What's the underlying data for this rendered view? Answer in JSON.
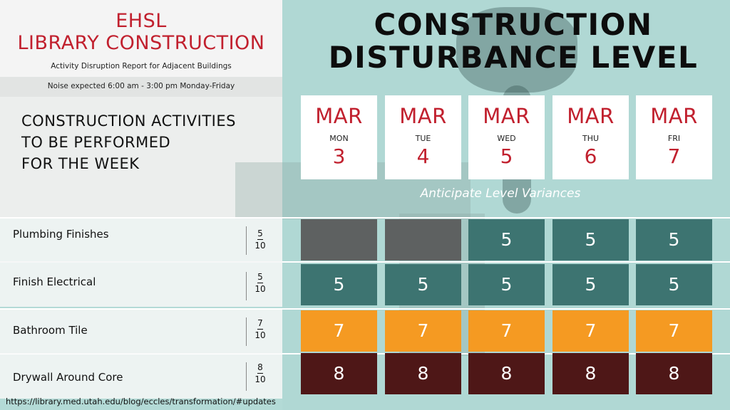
{
  "header": {
    "org": "EHSL",
    "project": "LIBRARY CONSTRUCTION",
    "report": "Activity Disruption Report for Adjacent Buildings",
    "noise": "Noise expected 6:00 am - 3:00 pm Monday-Friday"
  },
  "activities_heading": [
    "CONSTRUCTION ACTIVITIES",
    "TO BE PERFORMED",
    "FOR THE WEEK"
  ],
  "title": [
    "CONSTRUCTION",
    "DISTURBANCE LEVEL"
  ],
  "days": [
    {
      "month": "MAR",
      "dow": "MON",
      "date": "3"
    },
    {
      "month": "MAR",
      "dow": "TUE",
      "date": "4"
    },
    {
      "month": "MAR",
      "dow": "WED",
      "date": "5"
    },
    {
      "month": "MAR",
      "dow": "THU",
      "date": "6"
    },
    {
      "month": "MAR",
      "dow": "FRI",
      "date": "7"
    }
  ],
  "variances_label": "Anticipate Level Variances",
  "activities": [
    {
      "name": "Plumbing Finishes",
      "level": "5",
      "out_of": "10",
      "daily": [
        "",
        "",
        "5",
        "5",
        "5"
      ],
      "color": "#3d7471"
    },
    {
      "name": "Finish Electrical",
      "level": "5",
      "out_of": "10",
      "daily": [
        "5",
        "5",
        "5",
        "5",
        "5"
      ],
      "color": "#3d7471"
    },
    {
      "name": "Bathroom Tile",
      "level": "7",
      "out_of": "10",
      "daily": [
        "7",
        "7",
        "7",
        "7",
        "7"
      ],
      "color": "#f59a22"
    },
    {
      "name": "Drywall Around Core",
      "level": "8",
      "out_of": "10",
      "daily": [
        "8",
        "8",
        "8",
        "8",
        "8"
      ],
      "color": "#4e1717"
    }
  ],
  "url": "https://library.med.utah.edu/blog/eccles/transformation/#updates"
}
